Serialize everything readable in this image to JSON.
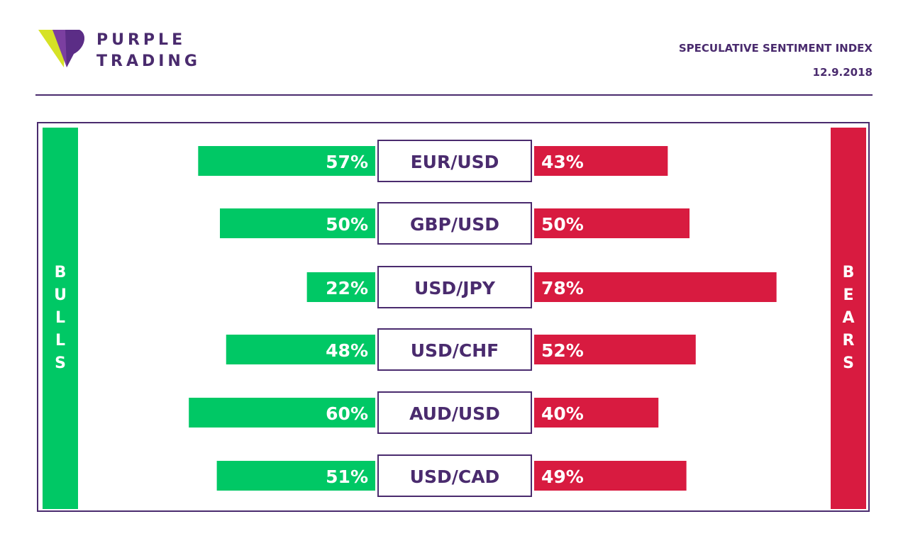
{
  "brand": {
    "line1": "PURPLE",
    "line2": "TRADING"
  },
  "header": {
    "title": "SPECULATIVE SENTIMENT INDEX",
    "date": "12.9.2018"
  },
  "labels": {
    "bulls": "BULLS",
    "bears": "BEARS"
  },
  "colors": {
    "bull": "#00c865",
    "bear": "#d81b40",
    "accent": "#4a2b6e",
    "logo_lime": "#d6e226"
  },
  "chart_data": {
    "type": "bar",
    "categories": [
      "EUR/USD",
      "GBP/USD",
      "USD/JPY",
      "USD/CHF",
      "AUD/USD",
      "USD/CAD"
    ],
    "series": [
      {
        "name": "BULLS",
        "values": [
          57,
          50,
          22,
          48,
          60,
          51
        ]
      },
      {
        "name": "BEARS",
        "values": [
          43,
          50,
          78,
          52,
          40,
          49
        ]
      }
    ],
    "value_labels": {
      "bulls": [
        "57%",
        "50%",
        "22%",
        "48%",
        "60%",
        "51%"
      ],
      "bears": [
        "43%",
        "50%",
        "78%",
        "52%",
        "40%",
        "49%"
      ]
    },
    "title": "SPECULATIVE SENTIMENT INDEX",
    "xlabel": "",
    "ylabel": ""
  }
}
